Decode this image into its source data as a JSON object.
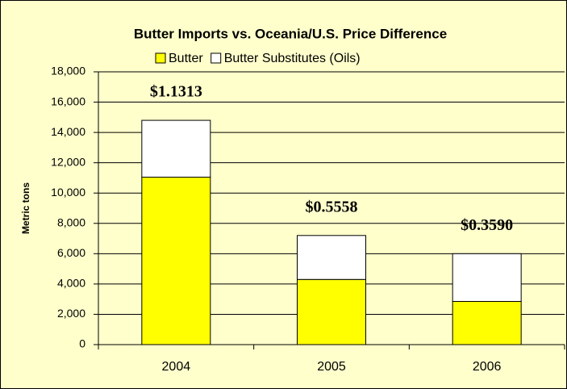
{
  "chart_data": {
    "type": "stacked_bar",
    "title": "Butter Imports vs. Oceania/U.S. Price Difference",
    "y_label": "Metric tons",
    "categories": [
      "2004",
      "2005",
      "2006"
    ],
    "series": [
      {
        "name": "Butter",
        "color": "#ffff00",
        "values": [
          11050,
          4300,
          2850
        ]
      },
      {
        "name": "Butter Substitutes (Oils)",
        "color": "#ffffff",
        "values": [
          3750,
          2900,
          3150
        ]
      }
    ],
    "annotations": [
      "$1.1313",
      "$0.5558",
      "$0.3590"
    ],
    "ylim": [
      0,
      18000
    ],
    "yticks": [
      0,
      {
        "value": 2000,
        "label": "2,000"
      },
      {
        "value": 4000,
        "label": "4,000"
      },
      {
        "value": 6000,
        "label": "6,000"
      },
      {
        "value": 8000,
        "label": "8,000"
      },
      {
        "value": 10000,
        "label": "10,000"
      },
      {
        "value": 12000,
        "label": "12,000"
      },
      {
        "value": 14000,
        "label": "14,000"
      },
      {
        "value": 16000,
        "label": "16,000"
      },
      {
        "value": 18000,
        "label": "18,000"
      }
    ],
    "grid": true
  }
}
